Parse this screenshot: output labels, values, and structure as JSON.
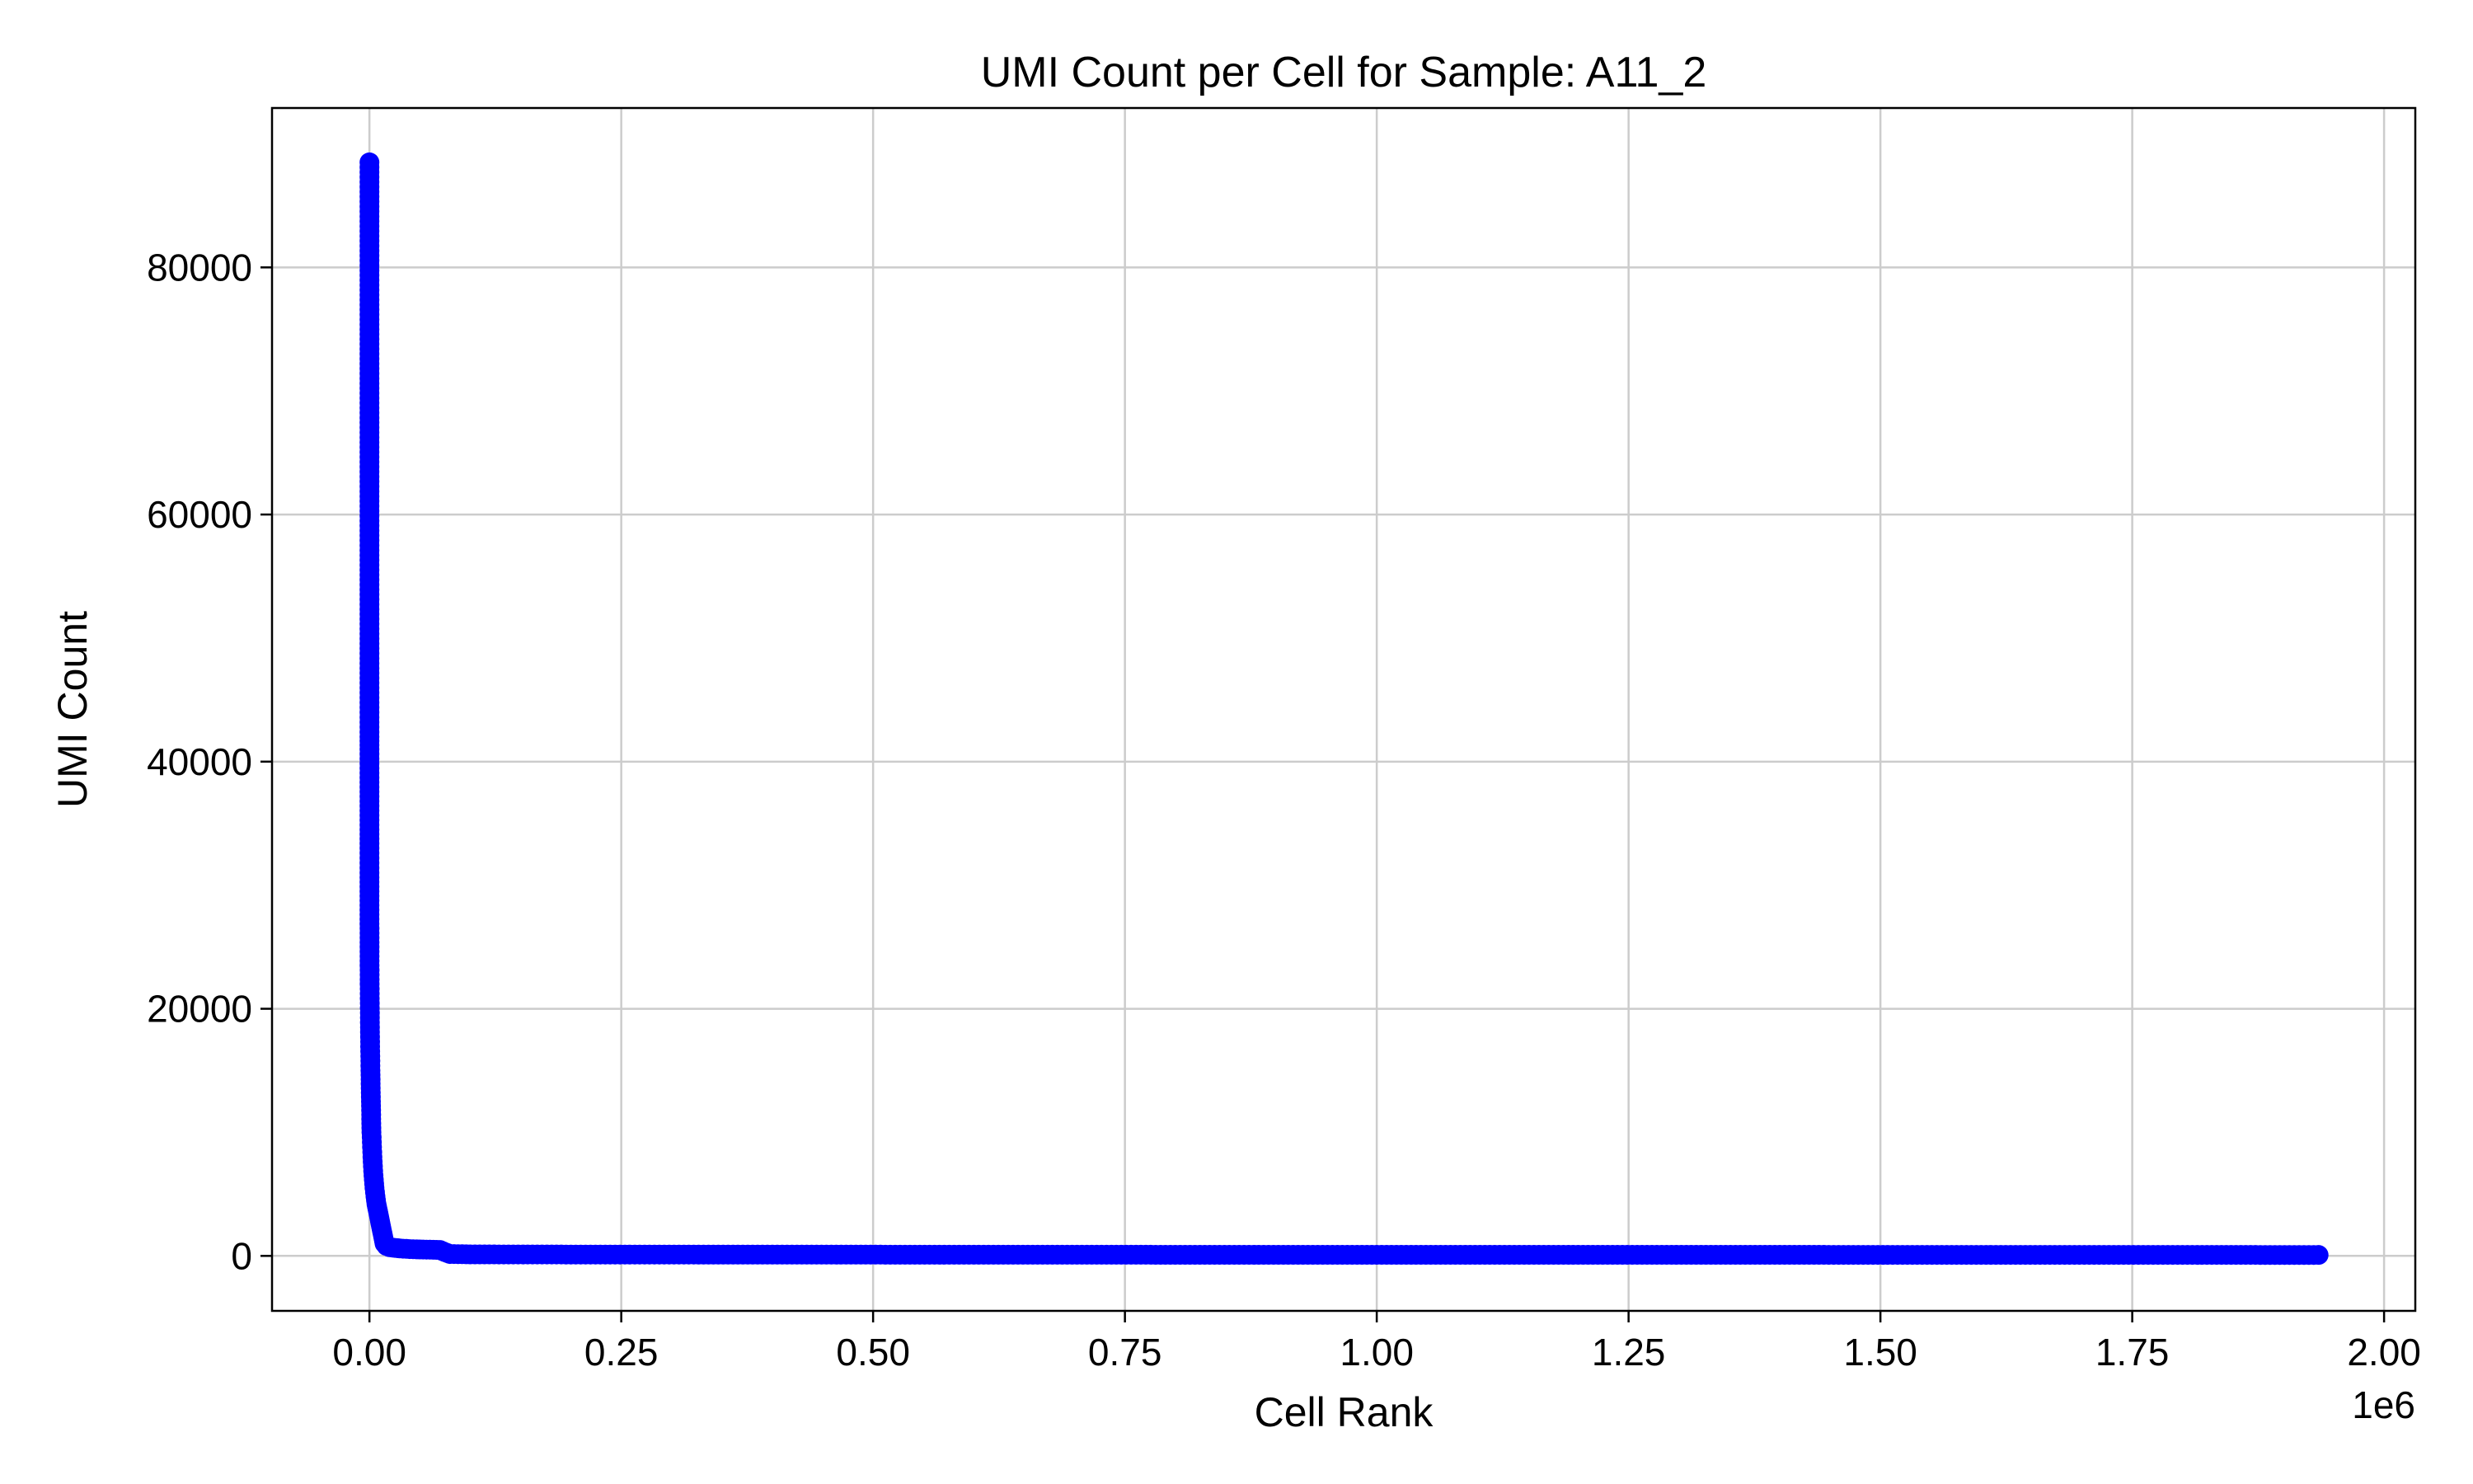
{
  "chart_data": {
    "type": "line",
    "title": "UMI Count per Cell for Sample: A11_2",
    "xlabel": "Cell Rank",
    "ylabel": "UMI Count",
    "x_offset_label": "1e6",
    "xlim": [
      -96700,
      2031000
    ],
    "ylim": [
      -4450,
      92900
    ],
    "xticks": [
      0,
      250000,
      500000,
      750000,
      1000000,
      1250000,
      1500000,
      1750000,
      2000000
    ],
    "xtick_labels": [
      "0.00",
      "0.25",
      "0.50",
      "0.75",
      "1.00",
      "1.25",
      "1.50",
      "1.75",
      "2.00"
    ],
    "yticks": [
      0,
      20000,
      40000,
      60000,
      80000
    ],
    "ytick_labels": [
      "0",
      "20000",
      "40000",
      "60000",
      "80000"
    ],
    "grid": true,
    "color": "#0000ff",
    "marker": "circle",
    "series": [
      {
        "x": [
          0,
          1,
          2,
          5,
          10,
          20,
          50,
          100,
          200,
          500,
          1000,
          1500,
          2000,
          3000,
          4000,
          5000,
          6000,
          7000,
          8000,
          9000,
          10000,
          11000,
          12000,
          13000,
          14000,
          15000,
          17000,
          20000,
          25000,
          30000,
          40000,
          50000,
          60000,
          70000,
          75000,
          80000,
          100000,
          200000,
          400000,
          600000,
          800000,
          1000000,
          1200000,
          1400000,
          1600000,
          1800000,
          1935000
        ],
        "y": [
          88500,
          42000,
          41000,
          34500,
          33000,
          31000,
          28000,
          25000,
          22000,
          18500,
          15000,
          12500,
          10000,
          8000,
          6500,
          5500,
          4800,
          4200,
          3800,
          3400,
          3000,
          2600,
          2200,
          1800,
          1400,
          1000,
          800,
          700,
          650,
          600,
          550,
          520,
          500,
          480,
          300,
          150,
          120,
          110,
          100,
          95,
          90,
          90,
          85,
          85,
          80,
          80,
          75
        ]
      }
    ]
  }
}
